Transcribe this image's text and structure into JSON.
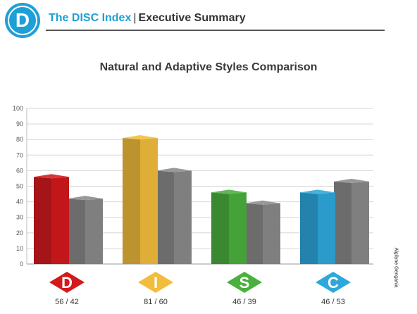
{
  "header": {
    "logo_letter": "D",
    "brand": "The DISC Index",
    "separator": "|",
    "subtitle": "Executive Summary"
  },
  "watermark": "Algilyne Gengania",
  "colors": {
    "accent": "#1e9fd6",
    "gray_bar": "#8a8a8a",
    "D": "#d3191c",
    "I": "#f2bd3c",
    "S": "#4ab03d",
    "C": "#2ea8dc"
  },
  "chart_data": {
    "type": "bar",
    "title": "Natural and Adaptive Styles Comparison",
    "categories": [
      "D",
      "I",
      "S",
      "C"
    ],
    "category_labels": [
      "56 / 42",
      "81 / 60",
      "46 / 39",
      "46 / 53"
    ],
    "series": [
      {
        "values": [
          56,
          81,
          46,
          46
        ]
      },
      {
        "values": [
          42,
          60,
          39,
          53
        ]
      }
    ],
    "ylim": [
      0,
      100
    ],
    "yticks": [
      0,
      10,
      20,
      30,
      40,
      50,
      60,
      70,
      80,
      90,
      100
    ],
    "grid": true,
    "style": "3d"
  }
}
